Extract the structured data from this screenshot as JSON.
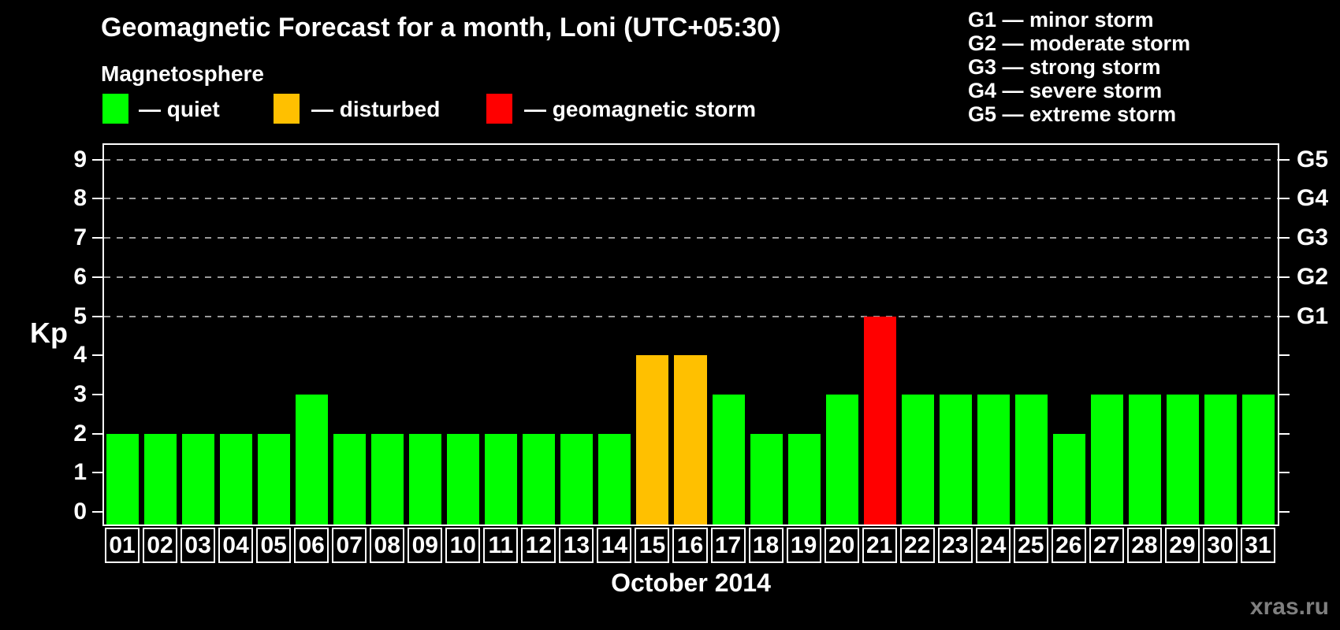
{
  "title": "Geomagnetic Forecast for a month, Loni (UTC+05:30)",
  "legend": {
    "heading": "Magnetosphere",
    "items": [
      {
        "name": "quiet",
        "label": "— quiet",
        "color": "#00ff00"
      },
      {
        "name": "disturbed",
        "label": "— disturbed",
        "color": "#ffc000"
      },
      {
        "name": "storm",
        "label": "— geomagnetic storm",
        "color": "#ff0000"
      }
    ]
  },
  "g_legend": [
    "G1 — minor storm",
    "G2 — moderate storm",
    "G3 — strong storm",
    "G4 — severe storm",
    "G5 — extreme storm"
  ],
  "watermark": "xras.ru",
  "chart_data": {
    "type": "bar",
    "title": "Geomagnetic Forecast for a month, Loni (UTC+05:30)",
    "xlabel": "October 2014",
    "ylabel": "Kp",
    "ylim": [
      0,
      9
    ],
    "y_ticks": [
      0,
      1,
      2,
      3,
      4,
      5,
      6,
      7,
      8,
      9
    ],
    "gridlines_kp": [
      5,
      6,
      7,
      8,
      9
    ],
    "grid": "dashed horizontal lines at Kp 5-9",
    "legend_position": "top-left",
    "categories": [
      "01",
      "02",
      "03",
      "04",
      "05",
      "06",
      "07",
      "08",
      "09",
      "10",
      "11",
      "12",
      "13",
      "14",
      "15",
      "16",
      "17",
      "18",
      "19",
      "20",
      "21",
      "22",
      "23",
      "24",
      "25",
      "26",
      "27",
      "28",
      "29",
      "30",
      "31"
    ],
    "values": [
      2,
      2,
      2,
      2,
      2,
      3,
      2,
      2,
      2,
      2,
      2,
      2,
      2,
      2,
      4,
      4,
      3,
      2,
      2,
      3,
      5,
      3,
      3,
      3,
      3,
      2,
      3,
      3,
      3,
      3,
      3
    ],
    "states": [
      "quiet",
      "quiet",
      "quiet",
      "quiet",
      "quiet",
      "quiet",
      "quiet",
      "quiet",
      "quiet",
      "quiet",
      "quiet",
      "quiet",
      "quiet",
      "quiet",
      "disturbed",
      "disturbed",
      "quiet",
      "quiet",
      "quiet",
      "quiet",
      "storm",
      "quiet",
      "quiet",
      "quiet",
      "quiet",
      "quiet",
      "quiet",
      "quiet",
      "quiet",
      "quiet",
      "quiet"
    ],
    "state_colors": {
      "quiet": "#00ff00",
      "disturbed": "#ffc000",
      "storm": "#ff0000"
    },
    "right_axis": [
      {
        "label": "G1",
        "kp": 5
      },
      {
        "label": "G2",
        "kp": 6
      },
      {
        "label": "G3",
        "kp": 7
      },
      {
        "label": "G4",
        "kp": 8
      },
      {
        "label": "G5",
        "kp": 9
      }
    ]
  }
}
